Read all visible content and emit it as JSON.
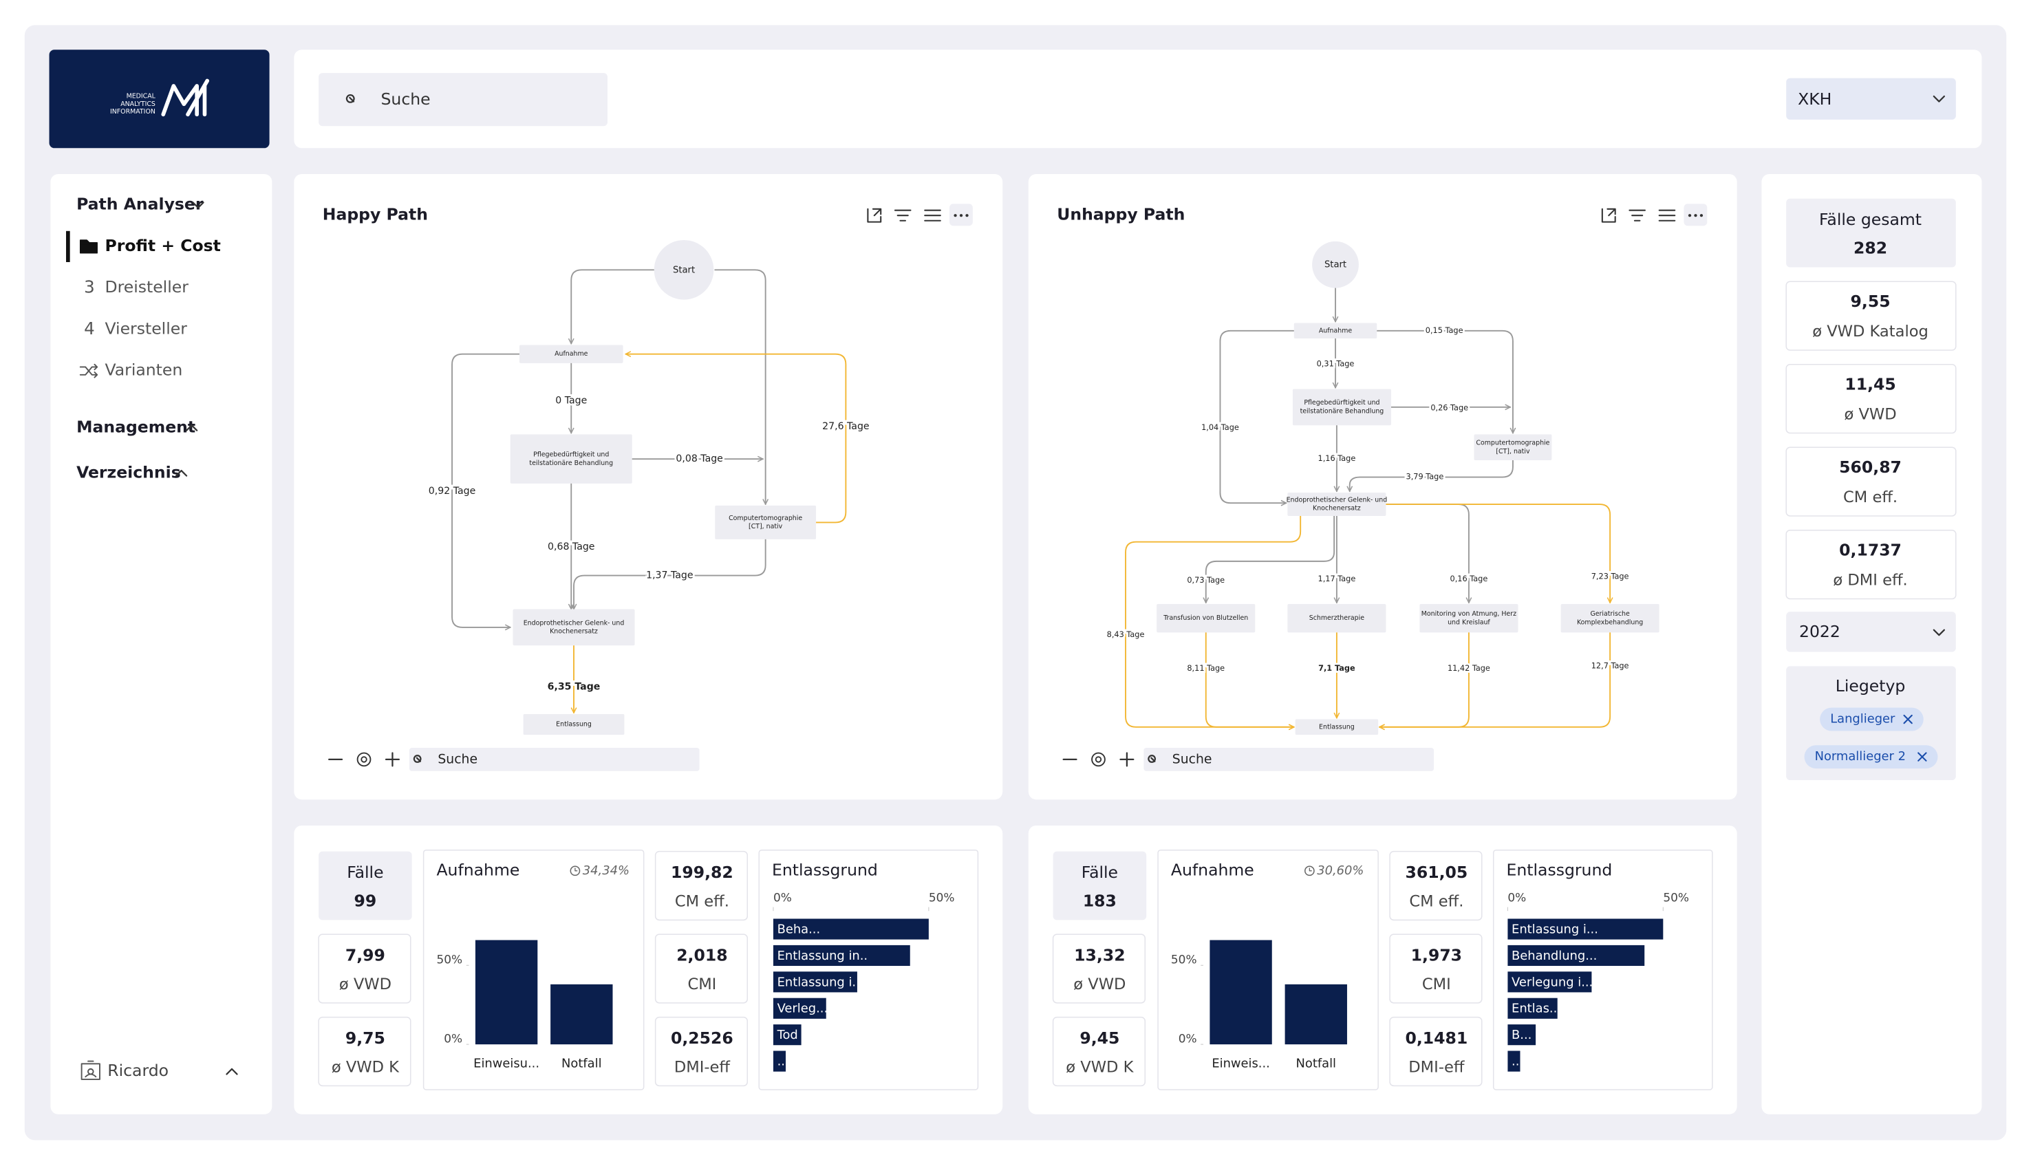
{
  "header": {
    "logo_text": [
      "MEDICAL",
      "ANALYTICS",
      "INFORMATION"
    ],
    "search_placeholder": "Suche",
    "clinic": "XKH"
  },
  "nav": {
    "section": "Path Analyser",
    "items": [
      {
        "label": "Profit + Cost"
      },
      {
        "icon": "3",
        "label": "Dreisteller"
      },
      {
        "icon": "4",
        "label": "Viersteller"
      },
      {
        "label": "Varianten"
      }
    ],
    "groups": [
      "Management",
      "Verzeichnis"
    ],
    "user": "Ricardo"
  },
  "paths": [
    {
      "title": "Happy Path",
      "search_placeholder": "Suche",
      "nodes": [
        {
          "label": [
            "Start"
          ]
        },
        {
          "label": [
            "Aufnahme"
          ]
        },
        {
          "label": [
            "Pflegebedürftigkeit und",
            "teilstationäre Behandlung"
          ]
        },
        {
          "label": [
            "Computertomographie",
            "[CT], nativ"
          ]
        },
        {
          "label": [
            "Endoprothetischer Gelenk- und",
            "Knochenersatz"
          ]
        },
        {
          "label": [
            "Entlassung"
          ]
        }
      ],
      "edges": [
        {
          "label": "0 Tage"
        },
        {
          "label": "0,08 Tage"
        },
        {
          "label": "27,6 Tage"
        },
        {
          "label": "0,68 Tage"
        },
        {
          "label": "1,37 Tage"
        },
        {
          "label": "0,92 Tage"
        },
        {
          "label": "6,35 Tage"
        }
      ]
    },
    {
      "title": "Unhappy Path",
      "search_placeholder": "Suche",
      "nodes": [
        {
          "label": [
            "Start"
          ]
        },
        {
          "label": [
            "Aufnahme"
          ]
        },
        {
          "label": [
            "Pflegebedürftigkeit und",
            "teilstationäre Behandlung"
          ]
        },
        {
          "label": [
            "Computertomographie",
            "[CT], nativ"
          ]
        },
        {
          "label": [
            "Endoprothetischer Gelenk- und",
            "Knochenersatz"
          ]
        },
        {
          "label": [
            "Transfusion von Blutzellen"
          ]
        },
        {
          "label": [
            "Schmerztherapie"
          ]
        },
        {
          "label": [
            "Monitoring von Atmung, Herz",
            "und Kreislauf"
          ]
        },
        {
          "label": [
            "Geriatrische",
            "Komplexbehandlung"
          ]
        },
        {
          "label": [
            "Entlassung"
          ]
        }
      ],
      "edges": [
        {
          "label": "0,15 Tage"
        },
        {
          "label": "0,31 Tage"
        },
        {
          "label": "0,26 Tage"
        },
        {
          "label": "1,04 Tage"
        },
        {
          "label": "1,16 Tage"
        },
        {
          "label": "3,79 Tage"
        },
        {
          "label": "0,73 Tage"
        },
        {
          "label": "1,17 Tage"
        },
        {
          "label": "0,16 Tage"
        },
        {
          "label": "7,23 Tage"
        },
        {
          "label": "8,43 Tage"
        },
        {
          "label": "8,11 Tage"
        },
        {
          "label": "7,1 Tage"
        },
        {
          "label": "11,42 Tage"
        },
        {
          "label": "12,7 Tage"
        }
      ]
    }
  ],
  "summaries": [
    {
      "faelle_label": "Fälle",
      "faelle": "99",
      "kpis": [
        {
          "value": "7,99",
          "label": "ø VWD"
        },
        {
          "value": "9,75",
          "label": "ø VWD K"
        }
      ],
      "aufnahme": {
        "type": "bar",
        "title": "Aufnahme",
        "note": "34,34%",
        "categories": [
          "Einweisu...",
          "Notfall"
        ],
        "values": [
          66,
          38
        ],
        "color": "#0b1f4d",
        "ylim": [
          0,
          70
        ],
        "yticks": [
          {
            "value": 0,
            "label": "0%"
          },
          {
            "value": 50,
            "label": "50%"
          }
        ]
      },
      "metrics": [
        {
          "value": "199,82",
          "label": "CM eff."
        },
        {
          "value": "2,018",
          "label": "CMI"
        },
        {
          "value": "0,2526",
          "label": "DMI-eff"
        }
      ],
      "entlassgrund": {
        "type": "barh",
        "title": "Entlassgrund",
        "categories": [
          "Beha...",
          "Entlassung in..",
          "Entlassung i...",
          "Verleg...",
          "Tod",
          "..."
        ],
        "values": [
          50,
          44,
          27,
          17,
          9,
          4
        ],
        "color": "#0b1f4d",
        "xlim": [
          0,
          60
        ],
        "xticks": [
          {
            "value": 0,
            "label": "0%"
          },
          {
            "value": 50,
            "label": "50%"
          }
        ]
      }
    },
    {
      "faelle_label": "Fälle",
      "faelle": "183",
      "kpis": [
        {
          "value": "13,32",
          "label": "ø VWD"
        },
        {
          "value": "9,45",
          "label": "ø VWD K"
        }
      ],
      "aufnahme": {
        "type": "bar",
        "title": "Aufnahme",
        "note": "30,60%",
        "categories": [
          "Einweis...",
          "Notfall"
        ],
        "values": [
          66,
          38
        ],
        "color": "#0b1f4d",
        "ylim": [
          0,
          70
        ],
        "yticks": [
          {
            "value": 0,
            "label": "0%"
          },
          {
            "value": 50,
            "label": "50%"
          }
        ]
      },
      "metrics": [
        {
          "value": "361,05",
          "label": "CM eff."
        },
        {
          "value": "1,973",
          "label": "CMI"
        },
        {
          "value": "0,1481",
          "label": "DMI-eff"
        }
      ],
      "entlassgrund": {
        "type": "barh",
        "title": "Entlassgrund",
        "categories": [
          "Entlassung i...",
          "Behandlung...",
          "Verlegung i...",
          "Entlas...",
          "B...",
          "..."
        ],
        "values": [
          50,
          44,
          27,
          16,
          9,
          4
        ],
        "color": "#0b1f4d",
        "xlim": [
          0,
          60
        ],
        "xticks": [
          {
            "value": 0,
            "label": "0%"
          },
          {
            "value": 50,
            "label": "50%"
          }
        ]
      }
    }
  ],
  "sidebar": {
    "total": {
      "label": "Fälle gesamt",
      "value": "282"
    },
    "kpis": [
      {
        "value": "9,55",
        "label": "ø VWD Katalog"
      },
      {
        "value": "11,45",
        "label": "ø VWD"
      },
      {
        "value": "560,87",
        "label": "CM eff."
      },
      {
        "value": "0,1737",
        "label": "ø DMI eff."
      }
    ],
    "year": "2022",
    "liegetyp": {
      "title": "Liegetyp",
      "tags": [
        "Langlieger",
        "Normallieger 2"
      ]
    }
  }
}
